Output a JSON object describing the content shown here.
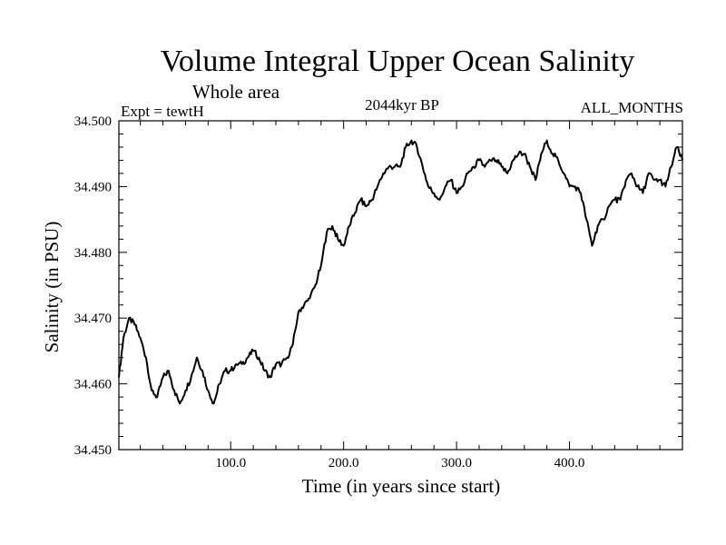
{
  "chart_data": {
    "type": "line",
    "title": "Volume Integral Upper Ocean Salinity",
    "subtitle": "Whole area",
    "experiment_label": "Expt = tewtH",
    "period_label": "2044kyr BP",
    "months_label": "ALL_MONTHS",
    "xlabel": "Time (in years since start)",
    "ylabel": "Salinity (in PSU)",
    "xlim": [
      1,
      500
    ],
    "ylim": [
      34.45,
      34.5
    ],
    "x_ticks": [
      100,
      200,
      300,
      400
    ],
    "x_tick_labels": [
      "100.0",
      "200.0",
      "300.0",
      "400.0"
    ],
    "y_ticks": [
      34.45,
      34.46,
      34.47,
      34.48,
      34.49,
      34.5
    ],
    "y_tick_labels": [
      "34.450",
      "34.460",
      "34.470",
      "34.480",
      "34.490",
      "34.500"
    ],
    "grid": false,
    "series": [
      {
        "name": "Salinity",
        "x": [
          1,
          5,
          10,
          15,
          20,
          25,
          30,
          35,
          40,
          45,
          50,
          55,
          60,
          65,
          70,
          75,
          80,
          85,
          90,
          95,
          100,
          105,
          110,
          115,
          120,
          125,
          130,
          135,
          140,
          145,
          150,
          155,
          160,
          165,
          170,
          175,
          180,
          185,
          190,
          195,
          200,
          205,
          210,
          215,
          220,
          225,
          230,
          235,
          240,
          245,
          250,
          255,
          260,
          265,
          270,
          275,
          280,
          285,
          290,
          295,
          300,
          305,
          310,
          315,
          320,
          325,
          330,
          335,
          340,
          345,
          350,
          355,
          360,
          365,
          370,
          375,
          380,
          385,
          390,
          395,
          400,
          405,
          410,
          415,
          420,
          425,
          430,
          435,
          440,
          445,
          450,
          455,
          460,
          465,
          470,
          475,
          480,
          485,
          490,
          495,
          500
        ],
        "values": [
          34.461,
          34.467,
          34.47,
          34.469,
          34.467,
          34.464,
          34.459,
          34.458,
          34.461,
          34.462,
          34.459,
          34.457,
          34.459,
          34.461,
          34.464,
          34.462,
          34.459,
          34.457,
          34.46,
          34.462,
          34.462,
          34.463,
          34.463,
          34.464,
          34.465,
          34.464,
          34.462,
          34.461,
          34.463,
          34.463,
          34.464,
          34.466,
          34.471,
          34.472,
          34.473,
          34.475,
          34.478,
          34.483,
          34.484,
          34.482,
          34.481,
          34.484,
          34.486,
          34.488,
          34.487,
          34.488,
          34.49,
          34.492,
          34.493,
          34.493,
          34.493,
          34.496,
          34.497,
          34.496,
          34.493,
          34.49,
          34.489,
          34.488,
          34.49,
          34.491,
          34.489,
          34.49,
          34.492,
          34.493,
          34.494,
          34.493,
          34.494,
          34.494,
          34.493,
          34.492,
          34.494,
          34.495,
          34.495,
          34.493,
          34.491,
          34.495,
          34.497,
          34.495,
          34.494,
          34.492,
          34.49,
          34.49,
          34.489,
          34.485,
          34.481,
          34.484,
          34.485,
          34.487,
          34.488,
          34.488,
          34.491,
          34.492,
          34.49,
          34.489,
          34.492,
          34.491,
          34.491,
          34.49,
          34.493,
          34.496,
          34.494
        ]
      }
    ]
  }
}
